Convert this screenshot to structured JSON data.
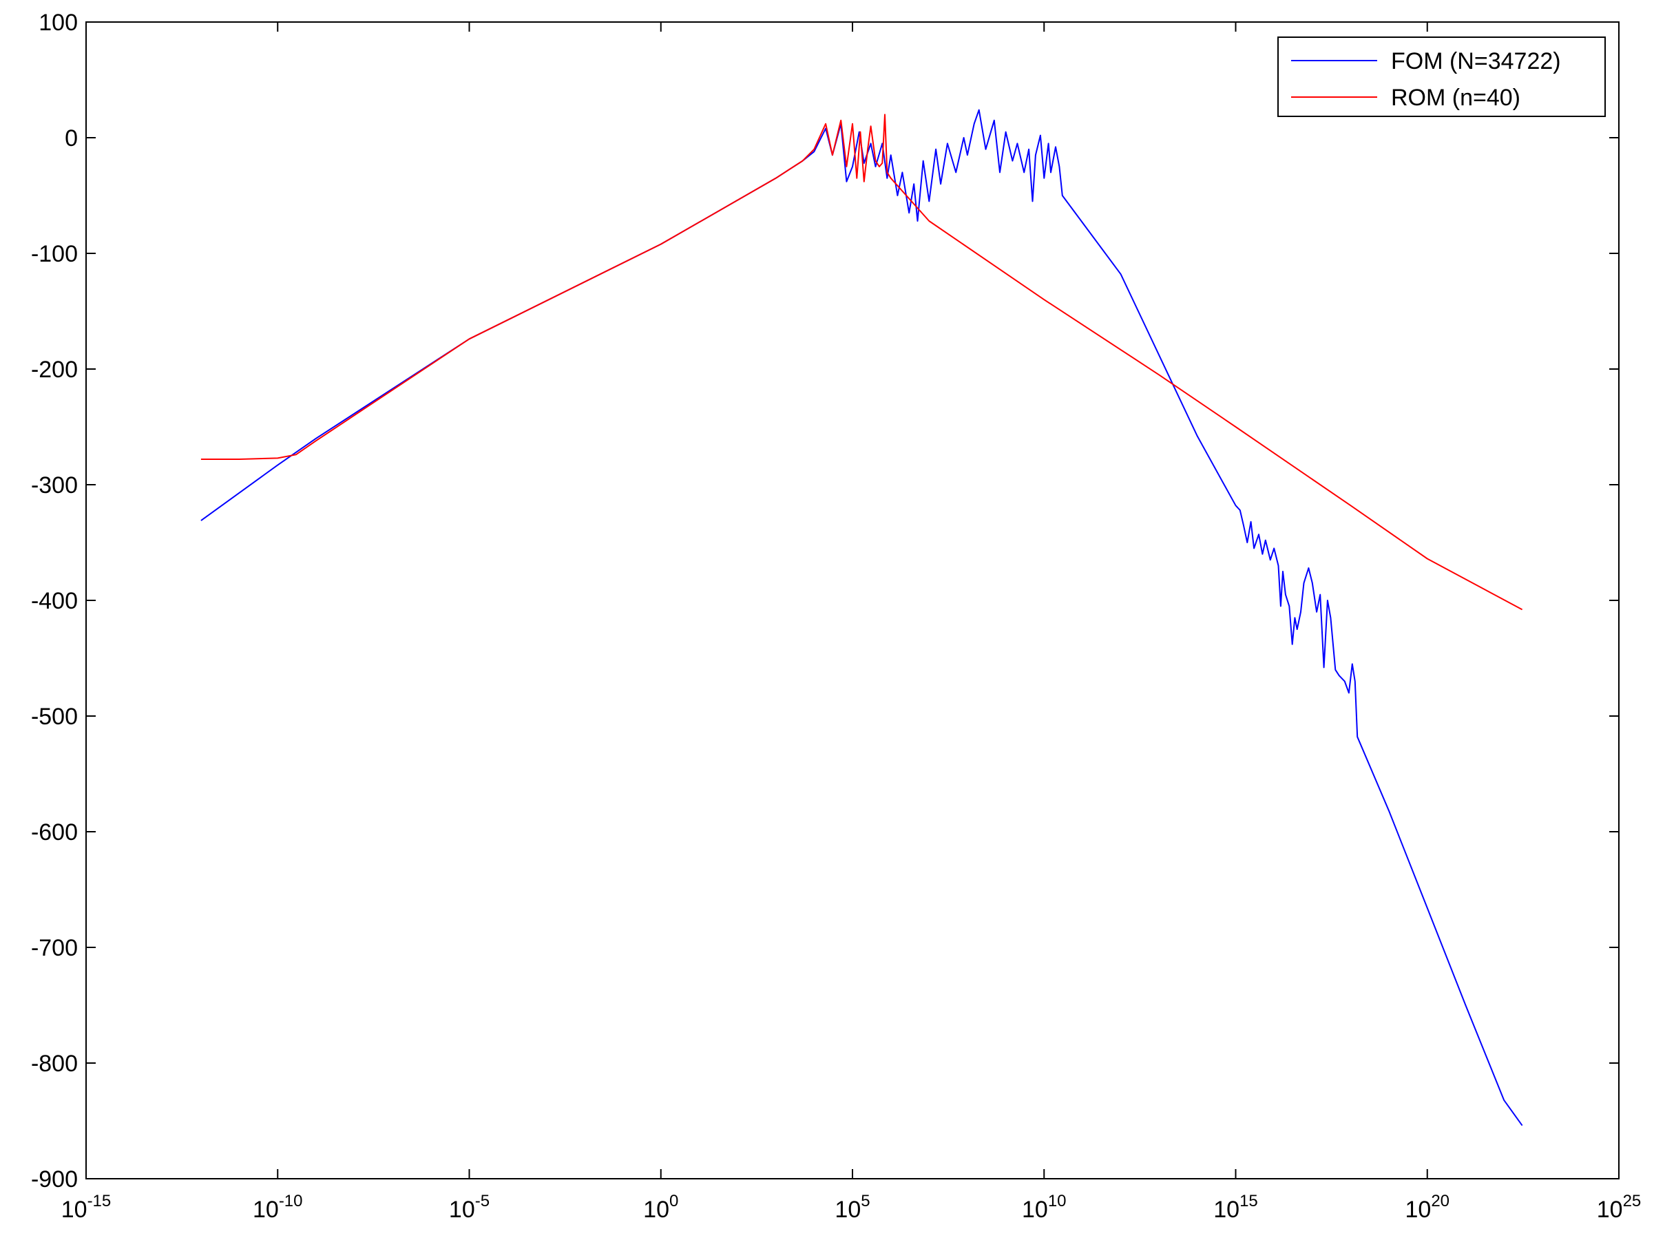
{
  "chart_data": {
    "type": "line",
    "title": "",
    "xlabel": "",
    "ylabel": "",
    "x_scale": "log",
    "xlim": [
      1e-15,
      1e+25
    ],
    "ylim": [
      -900,
      100
    ],
    "grid": false,
    "legend_position": "top-right",
    "colors": {
      "FOM (N=34722)": "#0000ff",
      "ROM (n=40)": "#ff0000"
    },
    "xticks": [
      {
        "base": "10",
        "exp": "-15"
      },
      {
        "base": "10",
        "exp": "-10"
      },
      {
        "base": "10",
        "exp": "-5"
      },
      {
        "base": "10",
        "exp": "0"
      },
      {
        "base": "10",
        "exp": "5"
      },
      {
        "base": "10",
        "exp": "10"
      },
      {
        "base": "10",
        "exp": "15"
      },
      {
        "base": "10",
        "exp": "20"
      },
      {
        "base": "10",
        "exp": "25"
      }
    ],
    "yticks": [
      "100",
      "0",
      "-100",
      "-200",
      "-300",
      "-400",
      "-500",
      "-600",
      "-700",
      "-800",
      "-900"
    ],
    "series": [
      {
        "name": "FOM (N=34722)",
        "color": "#0000ff",
        "points": [
          [
            "1e-12",
            -331
          ],
          [
            "1e-10",
            -283
          ],
          [
            "1e-9",
            -260
          ],
          [
            "1e-5",
            -174
          ],
          [
            "1e0",
            -92
          ],
          [
            "1e3",
            -35
          ],
          [
            "5e3",
            -20
          ],
          [
            "1e4",
            -12
          ],
          [
            "2e4",
            8
          ],
          [
            "3e4",
            -15
          ],
          [
            "5e4",
            12
          ],
          [
            "7e4",
            -38
          ],
          [
            "1e5",
            -25
          ],
          [
            "1.5e5",
            5
          ],
          [
            "2e5",
            -22
          ],
          [
            "3e5",
            -5
          ],
          [
            "4e5",
            -25
          ],
          [
            "6e5",
            -5
          ],
          [
            "8e5",
            -35
          ],
          [
            "1e6",
            -15
          ],
          [
            "1.5e6",
            -50
          ],
          [
            "2e6",
            -30
          ],
          [
            "3e6",
            -65
          ],
          [
            "4e6",
            -40
          ],
          [
            "5e6",
            -72
          ],
          [
            "7e6",
            -20
          ],
          [
            "1e7",
            -55
          ],
          [
            "1.5e7",
            -10
          ],
          [
            "2e7",
            -40
          ],
          [
            "3e7",
            -5
          ],
          [
            "5e7",
            -30
          ],
          [
            "8e7",
            0
          ],
          [
            "1e8",
            -15
          ],
          [
            "1.5e8",
            12
          ],
          [
            "2e8",
            24
          ],
          [
            "3e8",
            -10
          ],
          [
            "5e8",
            15
          ],
          [
            "7e8",
            -30
          ],
          [
            "1e9",
            5
          ],
          [
            "1.5e9",
            -20
          ],
          [
            "2e9",
            -5
          ],
          [
            "3e9",
            -30
          ],
          [
            "4e9",
            -10
          ],
          [
            "5e9",
            -55
          ],
          [
            "6e9",
            -15
          ],
          [
            "8e9",
            2
          ],
          [
            "1e10",
            -35
          ],
          [
            "1.3e10",
            -5
          ],
          [
            "1.5e10",
            -30
          ],
          [
            "2e10",
            -8
          ],
          [
            "2.5e10",
            -25
          ],
          [
            "3e10",
            -50
          ],
          [
            "1e12",
            -118
          ],
          [
            "1e13",
            -188
          ],
          [
            "1e14",
            -258
          ],
          [
            "1e15",
            -318
          ],
          [
            "1.3e15",
            -322
          ],
          [
            "1.6e15",
            -335
          ],
          [
            "2e15",
            -350
          ],
          [
            "2.5e15",
            -332
          ],
          [
            "3e15",
            -355
          ],
          [
            "4e15",
            -343
          ],
          [
            "5e15",
            -360
          ],
          [
            "6e15",
            -348
          ],
          [
            "8e15",
            -365
          ],
          [
            "1e16",
            -355
          ],
          [
            "1.3e16",
            -370
          ],
          [
            "1.5e16",
            -405
          ],
          [
            "1.7e16",
            -375
          ],
          [
            "2e16",
            -395
          ],
          [
            "2.5e16",
            -405
          ],
          [
            "3e16",
            -438
          ],
          [
            "3.5e16",
            -415
          ],
          [
            "4e16",
            -425
          ],
          [
            "5e16",
            -410
          ],
          [
            "6e16",
            -385
          ],
          [
            "8e16",
            -372
          ],
          [
            "1e17",
            -385
          ],
          [
            "1.3e17",
            -410
          ],
          [
            "1.6e17",
            -395
          ],
          [
            "2e17",
            -458
          ],
          [
            "2.5e17",
            -400
          ],
          [
            "3e17",
            -415
          ],
          [
            "4e17",
            -460
          ],
          [
            "5e17",
            -465
          ],
          [
            "7e17",
            -470
          ],
          [
            "9e17",
            -480
          ],
          [
            "1.1e18",
            -455
          ],
          [
            "1.3e18",
            -470
          ],
          [
            "1.5e18",
            -518
          ],
          [
            "1e19",
            -582
          ],
          [
            "1e20",
            -666
          ],
          [
            "1e21",
            -750
          ],
          [
            "1e22",
            -832
          ],
          [
            "3e22",
            -854
          ]
        ]
      },
      {
        "name": "ROM (n=40)",
        "color": "#ff0000",
        "points": [
          [
            "1e-12",
            -278
          ],
          [
            "1e-11",
            -278
          ],
          [
            "1e-10",
            -277
          ],
          [
            "3e-10",
            -274
          ],
          [
            "1e-9",
            -262
          ],
          [
            "1e-5",
            -174
          ],
          [
            "1e0",
            -92
          ],
          [
            "1e3",
            -35
          ],
          [
            "5e3",
            -20
          ],
          [
            "1e4",
            -10
          ],
          [
            "2e4",
            12
          ],
          [
            "3e4",
            -15
          ],
          [
            "5e4",
            15
          ],
          [
            "7e4",
            -25
          ],
          [
            "1e5",
            12
          ],
          [
            "1.3e5",
            -35
          ],
          [
            "1.6e5",
            5
          ],
          [
            "2e5",
            -38
          ],
          [
            "2.5e5",
            -10
          ],
          [
            "3e5",
            10
          ],
          [
            "4e5",
            -20
          ],
          [
            "5e5",
            -25
          ],
          [
            "6e5",
            -22
          ],
          [
            "7e5",
            20
          ],
          [
            "8e5",
            -30
          ],
          [
            "1e6",
            -35
          ],
          [
            "1e7",
            -72
          ],
          [
            "1e10",
            -140
          ],
          [
            "1e13",
            -205
          ],
          [
            "1e15",
            -250
          ],
          [
            "1e18",
            -318
          ],
          [
            "1e20",
            -364
          ],
          [
            "3e22",
            -408
          ]
        ]
      }
    ]
  }
}
